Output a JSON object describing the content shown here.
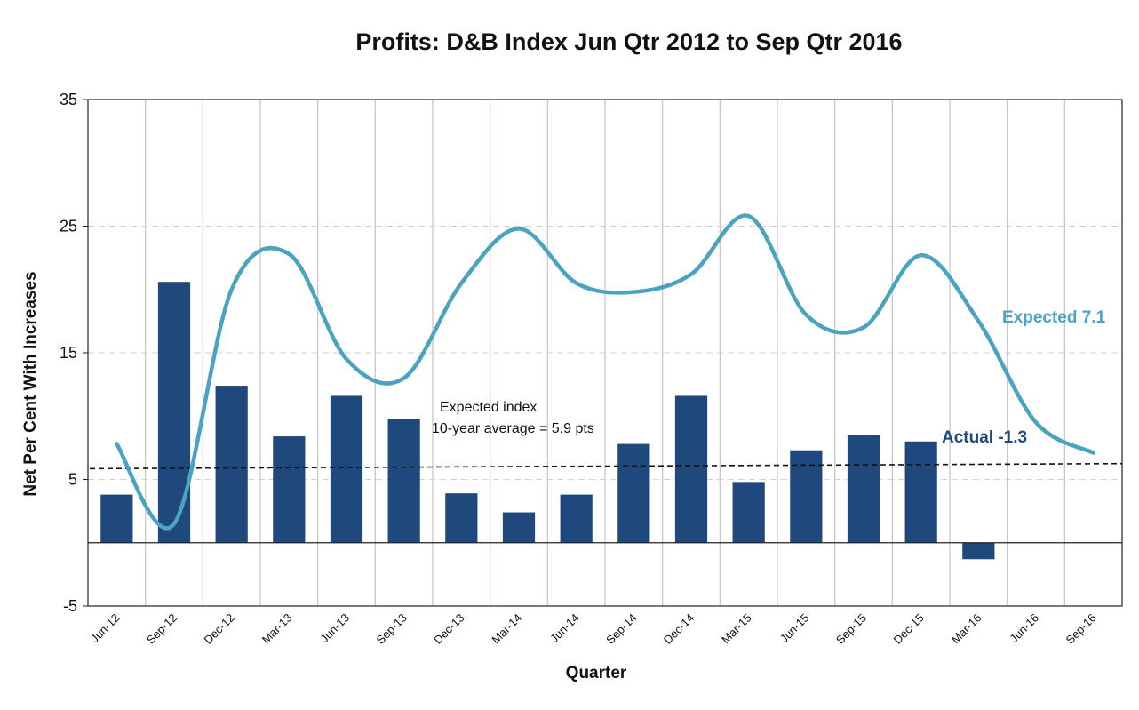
{
  "chart_data": {
    "type": "bar",
    "title": "Profits: D&B Index Jun Qtr 2012 to Sep Qtr 2016",
    "xlabel": "Quarter",
    "ylabel": "Net Per Cent With Increases",
    "ylim": [
      -5,
      35
    ],
    "yticks": [
      -5,
      5,
      15,
      25,
      35
    ],
    "grid": true,
    "categories": [
      "Jun-12",
      "Sep-12",
      "Dec-12",
      "Mar-13",
      "Jun-13",
      "Sep-13",
      "Dec-13",
      "Mar-14",
      "Jun-14",
      "Sep-14",
      "Dec-14",
      "Mar-15",
      "Jun-15",
      "Sep-15",
      "Dec-15",
      "Mar-16",
      "Jun-16",
      "Sep-16"
    ],
    "series": [
      {
        "name": "Actual -1.3",
        "type": "bar",
        "color": "#1f497d",
        "values": [
          3.8,
          20.6,
          12.4,
          8.4,
          11.6,
          9.8,
          3.9,
          2.4,
          3.8,
          7.8,
          11.6,
          4.8,
          7.3,
          8.5,
          8.0,
          -1.3,
          null,
          null
        ]
      },
      {
        "name": "Expected 7.1",
        "type": "line",
        "color": "#4aa3c0",
        "values": [
          7.8,
          1.5,
          20.0,
          22.8,
          14.5,
          13.0,
          20.5,
          24.8,
          20.5,
          19.8,
          21.2,
          25.8,
          18.0,
          17.0,
          22.7,
          17.5,
          9.5,
          7.1
        ]
      }
    ],
    "reference_line": {
      "value": 5.9,
      "style": "dashed",
      "color": "#111111"
    },
    "annotations": [
      {
        "text": "Expected index"
      },
      {
        "text": "10-year average = 5.9 pts"
      }
    ]
  }
}
